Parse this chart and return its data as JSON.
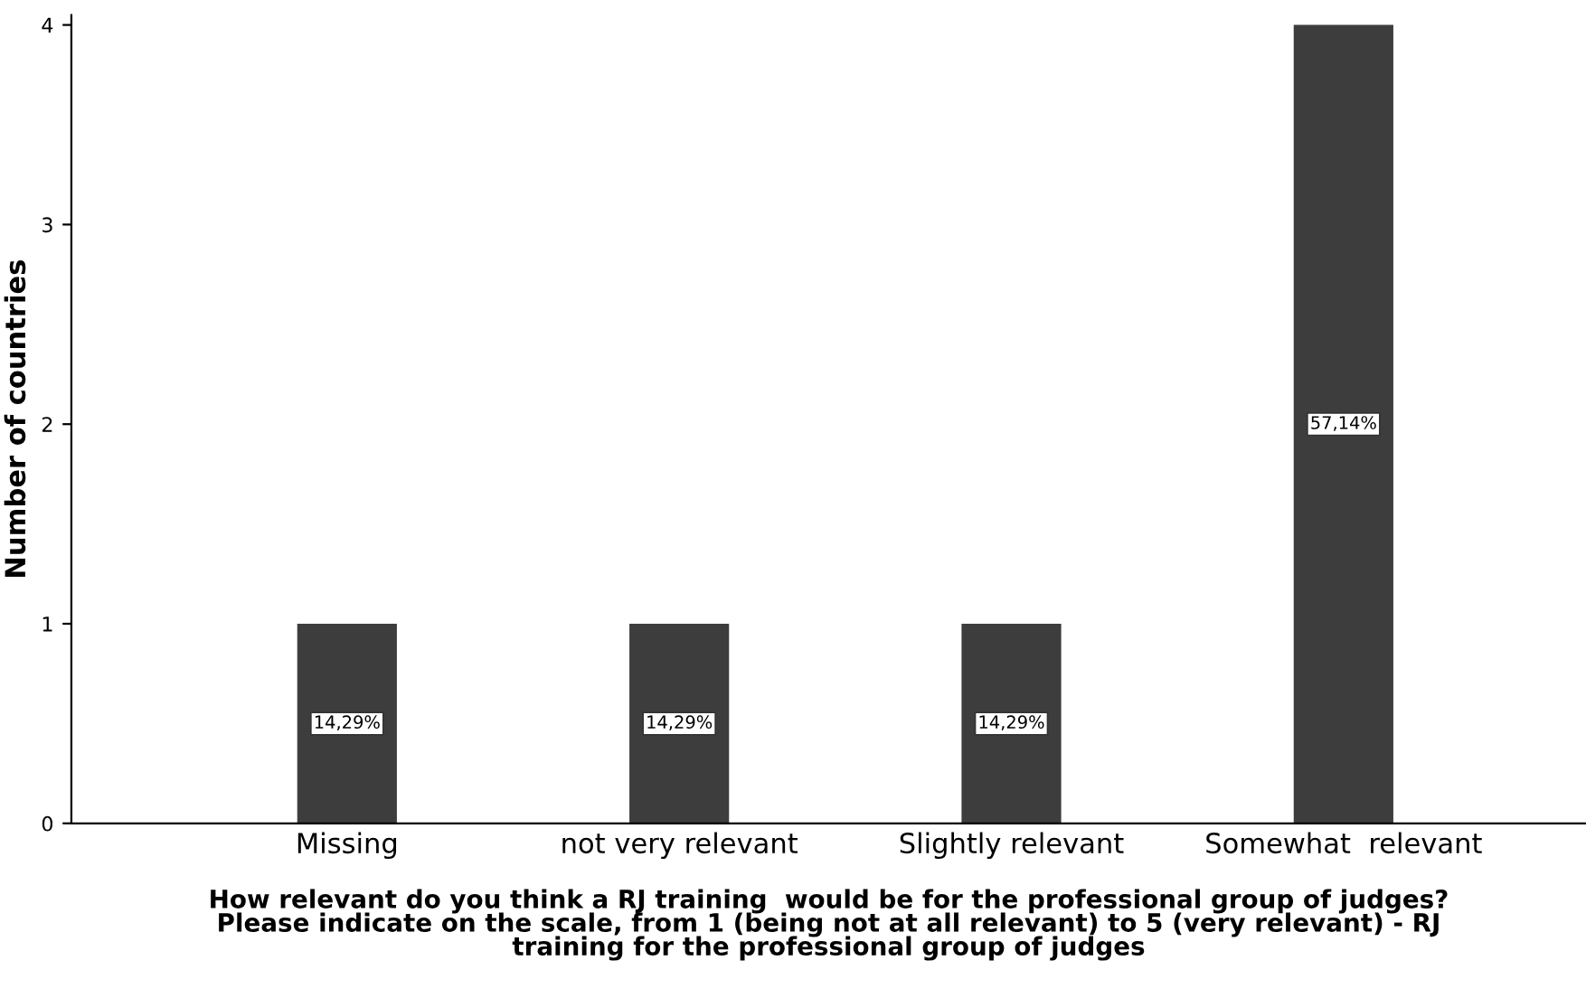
{
  "chart_data": {
    "type": "bar",
    "xlabel": "How relevant do you think a RJ training  would be for the professional group of judges?\nPlease indicate on the scale, from 1 (being not at all relevant) to 5 (very relevant) - RJ\ntraining for the professional group of judges",
    "ylabel": "Number of countries",
    "categories": [
      "Missing",
      "not very relevant",
      "Slightly relevant",
      "Somewhat  relevant"
    ],
    "values": [
      1,
      1,
      1,
      4
    ],
    "annotations": [
      {
        "text": "14,29%",
        "x": "Missing",
        "y": 0.5
      },
      {
        "text": "14,29%",
        "x": "not very relevant",
        "y": 0.5
      },
      {
        "text": "14,29%",
        "x": "Slightly relevant",
        "y": 0.5
      },
      {
        "text": "57,14%",
        "x": "Somewhat  relevant",
        "y": 2
      }
    ],
    "color": "#3d3d3d",
    "ylim": [
      0,
      4.05
    ],
    "yticks": [
      0,
      1,
      2,
      3,
      4
    ],
    "grid": false,
    "legend": false
  }
}
